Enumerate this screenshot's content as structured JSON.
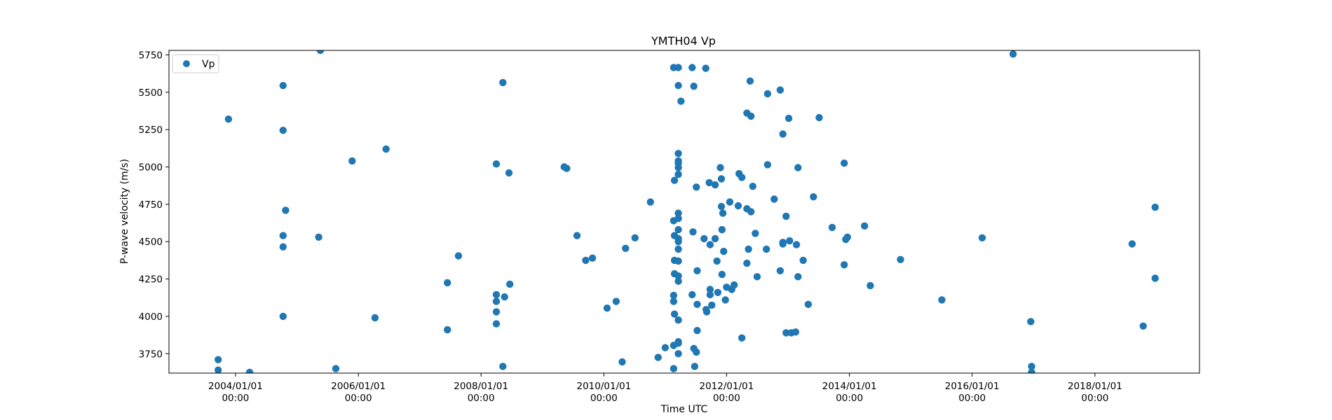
{
  "chart_data": {
    "type": "scatter",
    "title": "YMTH04 Vp",
    "xlabel": "Time UTC",
    "ylabel": "P-wave velocity (m/s)",
    "xlim": [
      "2002-12-01",
      "2019-09-15"
    ],
    "ylim": [
      3620,
      5780
    ],
    "grid": false,
    "legend_position": "top-left",
    "x_ticks": [
      {
        "date": "2004-01-01",
        "label": "2004/01/01",
        "sublabel": "00:00"
      },
      {
        "date": "2006-01-01",
        "label": "2006/01/01",
        "sublabel": "00:00"
      },
      {
        "date": "2008-01-01",
        "label": "2008/01/01",
        "sublabel": "00:00"
      },
      {
        "date": "2010-01-01",
        "label": "2010/01/01",
        "sublabel": "00:00"
      },
      {
        "date": "2012-01-01",
        "label": "2012/01/01",
        "sublabel": "00:00"
      },
      {
        "date": "2014-01-01",
        "label": "2014/01/01",
        "sublabel": "00:00"
      },
      {
        "date": "2016-01-01",
        "label": "2016/01/01",
        "sublabel": "00:00"
      },
      {
        "date": "2018-01-01",
        "label": "2018/01/01",
        "sublabel": "00:00"
      }
    ],
    "y_ticks": [
      3750,
      4000,
      4250,
      4500,
      4750,
      5000,
      5250,
      5500,
      5750
    ],
    "series": [
      {
        "name": "Vp",
        "color": "#1f77b4",
        "points": [
          {
            "x": "2003-09-20",
            "y": 3710
          },
          {
            "x": "2003-09-20",
            "y": 3640
          },
          {
            "x": "2003-11-20",
            "y": 5320
          },
          {
            "x": "2004-03-25",
            "y": 3625
          },
          {
            "x": "2004-10-10",
            "y": 5545
          },
          {
            "x": "2004-10-10",
            "y": 5245
          },
          {
            "x": "2004-10-25",
            "y": 4710
          },
          {
            "x": "2004-10-10",
            "y": 4540
          },
          {
            "x": "2004-10-10",
            "y": 4465
          },
          {
            "x": "2004-10-10",
            "y": 4000
          },
          {
            "x": "2005-05-20",
            "y": 5780
          },
          {
            "x": "2005-05-10",
            "y": 4530
          },
          {
            "x": "2005-08-20",
            "y": 3650
          },
          {
            "x": "2005-11-25",
            "y": 5040
          },
          {
            "x": "2006-04-10",
            "y": 3990
          },
          {
            "x": "2006-06-15",
            "y": 5120
          },
          {
            "x": "2007-06-15",
            "y": 4225
          },
          {
            "x": "2007-06-15",
            "y": 3910
          },
          {
            "x": "2007-08-20",
            "y": 4405
          },
          {
            "x": "2008-04-01",
            "y": 5020
          },
          {
            "x": "2008-04-01",
            "y": 4145
          },
          {
            "x": "2008-04-01",
            "y": 4100
          },
          {
            "x": "2008-04-01",
            "y": 4030
          },
          {
            "x": "2008-04-01",
            "y": 3950
          },
          {
            "x": "2008-05-10",
            "y": 5565
          },
          {
            "x": "2008-05-20",
            "y": 4130
          },
          {
            "x": "2008-05-10",
            "y": 3665
          },
          {
            "x": "2008-06-15",
            "y": 4960
          },
          {
            "x": "2008-06-20",
            "y": 4215
          },
          {
            "x": "2009-05-10",
            "y": 5000
          },
          {
            "x": "2009-05-25",
            "y": 4990
          },
          {
            "x": "2009-07-25",
            "y": 4540
          },
          {
            "x": "2009-09-15",
            "y": 4375
          },
          {
            "x": "2009-10-25",
            "y": 4390
          },
          {
            "x": "2010-01-20",
            "y": 4055
          },
          {
            "x": "2010-03-15",
            "y": 4100
          },
          {
            "x": "2010-04-20",
            "y": 3695
          },
          {
            "x": "2010-05-10",
            "y": 4455
          },
          {
            "x": "2010-07-05",
            "y": 4525
          },
          {
            "x": "2010-10-05",
            "y": 4765
          },
          {
            "x": "2010-11-20",
            "y": 3725
          },
          {
            "x": "2011-01-01",
            "y": 3790
          },
          {
            "x": "2011-02-20",
            "y": 5665
          },
          {
            "x": "2011-03-20",
            "y": 5665
          },
          {
            "x": "2011-02-20",
            "y": 4640
          },
          {
            "x": "2011-03-20",
            "y": 5545
          },
          {
            "x": "2011-03-20",
            "y": 5090
          },
          {
            "x": "2011-03-20",
            "y": 5040
          },
          {
            "x": "2011-03-20",
            "y": 5025
          },
          {
            "x": "2011-03-20",
            "y": 4995
          },
          {
            "x": "2011-03-20",
            "y": 4950
          },
          {
            "x": "2011-02-25",
            "y": 4910
          },
          {
            "x": "2011-03-20",
            "y": 4690
          },
          {
            "x": "2011-03-20",
            "y": 4655
          },
          {
            "x": "2011-03-20",
            "y": 4580
          },
          {
            "x": "2011-02-25",
            "y": 4540
          },
          {
            "x": "2011-03-20",
            "y": 4520
          },
          {
            "x": "2011-03-20",
            "y": 4500
          },
          {
            "x": "2011-03-20",
            "y": 4450
          },
          {
            "x": "2011-02-25",
            "y": 4375
          },
          {
            "x": "2011-03-20",
            "y": 4370
          },
          {
            "x": "2011-02-25",
            "y": 4285
          },
          {
            "x": "2011-03-20",
            "y": 4270
          },
          {
            "x": "2011-03-20",
            "y": 4235
          },
          {
            "x": "2011-02-20",
            "y": 4140
          },
          {
            "x": "2011-02-20",
            "y": 4100
          },
          {
            "x": "2011-02-25",
            "y": 4015
          },
          {
            "x": "2011-03-20",
            "y": 3975
          },
          {
            "x": "2011-03-20",
            "y": 3830
          },
          {
            "x": "2011-03-20",
            "y": 3820
          },
          {
            "x": "2011-02-20",
            "y": 3805
          },
          {
            "x": "2011-03-20",
            "y": 3750
          },
          {
            "x": "2011-02-20",
            "y": 3650
          },
          {
            "x": "2011-04-05",
            "y": 5440
          },
          {
            "x": "2011-06-10",
            "y": 5665
          },
          {
            "x": "2011-06-20",
            "y": 5540
          },
          {
            "x": "2011-06-15",
            "y": 4565
          },
          {
            "x": "2011-06-10",
            "y": 4145
          },
          {
            "x": "2011-06-20",
            "y": 3785
          },
          {
            "x": "2011-07-05",
            "y": 3760
          },
          {
            "x": "2011-06-25",
            "y": 3665
          },
          {
            "x": "2011-07-05",
            "y": 4865
          },
          {
            "x": "2011-07-10",
            "y": 4305
          },
          {
            "x": "2011-07-10",
            "y": 4080
          },
          {
            "x": "2011-07-10",
            "y": 3905
          },
          {
            "x": "2011-08-30",
            "y": 5660
          },
          {
            "x": "2011-08-20",
            "y": 4520
          },
          {
            "x": "2011-09-01",
            "y": 4045
          },
          {
            "x": "2011-09-05",
            "y": 4030
          },
          {
            "x": "2011-09-20",
            "y": 4895
          },
          {
            "x": "2011-09-25",
            "y": 4480
          },
          {
            "x": "2011-09-25",
            "y": 4180
          },
          {
            "x": "2011-09-25",
            "y": 4145
          },
          {
            "x": "2011-10-05",
            "y": 4075
          },
          {
            "x": "2011-10-25",
            "y": 4880
          },
          {
            "x": "2011-10-25",
            "y": 4520
          },
          {
            "x": "2011-11-05",
            "y": 4370
          },
          {
            "x": "2011-11-10",
            "y": 4160
          },
          {
            "x": "2011-11-25",
            "y": 4995
          },
          {
            "x": "2011-12-01",
            "y": 4920
          },
          {
            "x": "2011-12-01",
            "y": 4735
          },
          {
            "x": "2011-12-05",
            "y": 4580
          },
          {
            "x": "2011-12-10",
            "y": 4690
          },
          {
            "x": "2011-12-05",
            "y": 4280
          },
          {
            "x": "2011-12-15",
            "y": 4435
          },
          {
            "x": "2011-12-25",
            "y": 4110
          },
          {
            "x": "2012-01-01",
            "y": 4195
          },
          {
            "x": "2012-01-20",
            "y": 4765
          },
          {
            "x": "2012-02-01",
            "y": 4180
          },
          {
            "x": "2012-02-15",
            "y": 4210
          },
          {
            "x": "2012-03-15",
            "y": 4955
          },
          {
            "x": "2012-03-10",
            "y": 4740
          },
          {
            "x": "2012-04-01",
            "y": 4930
          },
          {
            "x": "2012-04-01",
            "y": 3855
          },
          {
            "x": "2012-05-01",
            "y": 5360
          },
          {
            "x": "2012-05-01",
            "y": 4720
          },
          {
            "x": "2012-05-01",
            "y": 4355
          },
          {
            "x": "2012-05-10",
            "y": 4450
          },
          {
            "x": "2012-05-20",
            "y": 5575
          },
          {
            "x": "2012-05-25",
            "y": 5340
          },
          {
            "x": "2012-05-25",
            "y": 4700
          },
          {
            "x": "2012-06-05",
            "y": 4870
          },
          {
            "x": "2012-06-20",
            "y": 4555
          },
          {
            "x": "2012-07-01",
            "y": 4265
          },
          {
            "x": "2012-09-01",
            "y": 5490
          },
          {
            "x": "2012-09-01",
            "y": 5015
          },
          {
            "x": "2012-08-25",
            "y": 4450
          },
          {
            "x": "2012-10-10",
            "y": 4785
          },
          {
            "x": "2012-11-15",
            "y": 5515
          },
          {
            "x": "2012-11-15",
            "y": 4305
          },
          {
            "x": "2012-12-01",
            "y": 5220
          },
          {
            "x": "2012-12-01",
            "y": 4485
          },
          {
            "x": "2012-12-01",
            "y": 4495
          },
          {
            "x": "2013-01-05",
            "y": 5325
          },
          {
            "x": "2012-12-20",
            "y": 4670
          },
          {
            "x": "2013-01-10",
            "y": 4505
          },
          {
            "x": "2012-12-20",
            "y": 3890
          },
          {
            "x": "2013-01-20",
            "y": 3890
          },
          {
            "x": "2013-02-15",
            "y": 3895
          },
          {
            "x": "2013-02-20",
            "y": 4480
          },
          {
            "x": "2013-03-01",
            "y": 4995
          },
          {
            "x": "2013-03-01",
            "y": 4265
          },
          {
            "x": "2013-04-01",
            "y": 4375
          },
          {
            "x": "2013-05-01",
            "y": 4080
          },
          {
            "x": "2013-06-01",
            "y": 4800
          },
          {
            "x": "2013-07-05",
            "y": 5330
          },
          {
            "x": "2013-09-20",
            "y": 4595
          },
          {
            "x": "2013-12-01",
            "y": 5025
          },
          {
            "x": "2013-12-01",
            "y": 4345
          },
          {
            "x": "2013-12-10",
            "y": 4515
          },
          {
            "x": "2013-12-20",
            "y": 4530
          },
          {
            "x": "2014-04-01",
            "y": 4605
          },
          {
            "x": "2014-05-05",
            "y": 4205
          },
          {
            "x": "2014-11-01",
            "y": 4380
          },
          {
            "x": "2015-07-05",
            "y": 4110
          },
          {
            "x": "2016-03-01",
            "y": 4525
          },
          {
            "x": "2016-09-01",
            "y": 5755
          },
          {
            "x": "2016-12-15",
            "y": 3965
          },
          {
            "x": "2016-12-20",
            "y": 3665
          },
          {
            "x": "2016-12-20",
            "y": 3625
          },
          {
            "x": "2018-08-10",
            "y": 4485
          },
          {
            "x": "2018-10-15",
            "y": 3935
          },
          {
            "x": "2018-12-25",
            "y": 4730
          },
          {
            "x": "2018-12-25",
            "y": 4255
          }
        ]
      }
    ]
  }
}
